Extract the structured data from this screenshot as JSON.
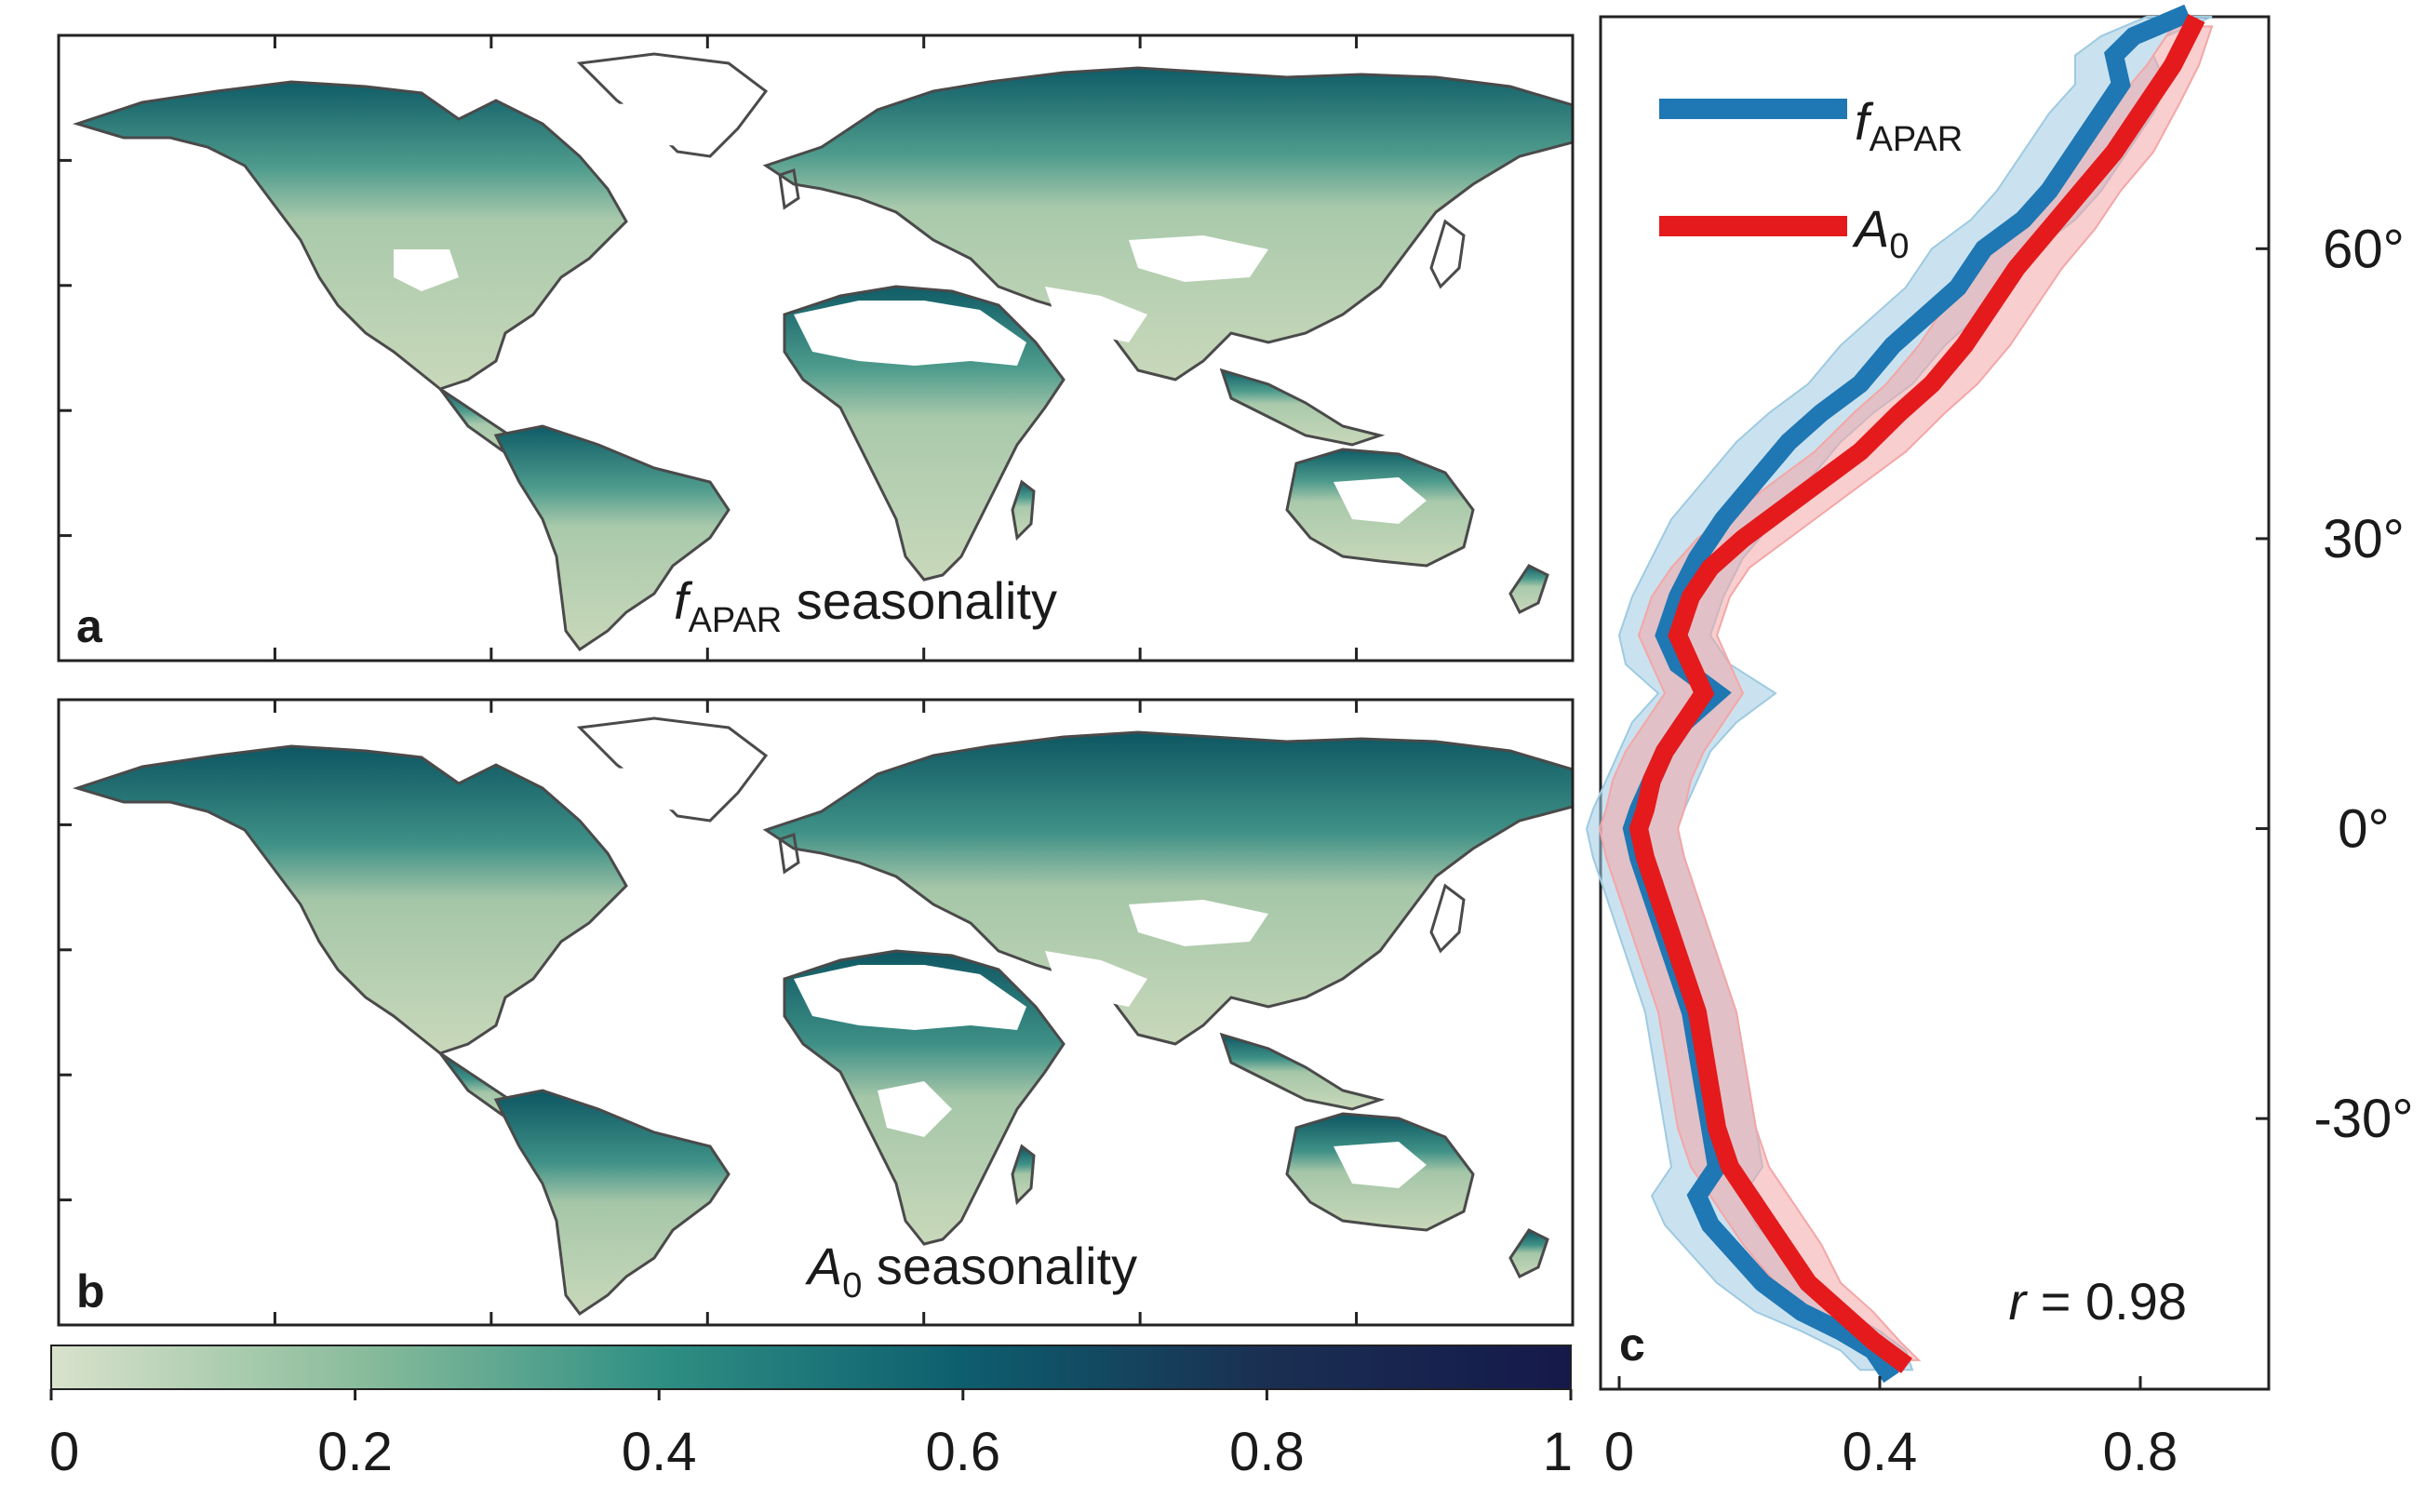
{
  "panels": {
    "a": {
      "letter": "a",
      "label_italic": "f",
      "label_sub": "APAR",
      "label_rest": " seasonality"
    },
    "b": {
      "letter": "b",
      "label_italic": "A",
      "label_sub": "0",
      "label_rest": " seasonality"
    },
    "c": {
      "letter": "c"
    }
  },
  "colorbar": {
    "colors": [
      "#d9e2cc",
      "#8bbd9c",
      "#2f8f83",
      "#0d5e6e",
      "#1a2f52",
      "#15194a"
    ],
    "ticks": [
      "0",
      "0.2",
      "0.4",
      "0.6",
      "0.8",
      "1"
    ],
    "tick_values": [
      0,
      0.2,
      0.4,
      0.6,
      0.8,
      1
    ]
  },
  "map_colors": {
    "land_low": "#c8d6b9",
    "land_mid": "#6fae96",
    "land_high": "#0f5e6a",
    "coast": "#4a4a4a"
  },
  "chart_data": {
    "type": "line",
    "orientation": "latitude-profile",
    "xlim": [
      0,
      1
    ],
    "ylim": [
      -58,
      84
    ],
    "x_ticks": [
      "0",
      "0.4",
      "0.8"
    ],
    "x_tick_values": [
      0,
      0.4,
      0.8
    ],
    "y_ticks": [
      "60°",
      "30°",
      "0°",
      "-30°"
    ],
    "y_tick_values": [
      60,
      30,
      0,
      -30
    ],
    "annotation": {
      "italic": "r",
      "rest": " = 0.98"
    },
    "series": [
      {
        "name_italic": "f",
        "name_sub": "APAR",
        "color": "#1f77b4",
        "band_color": "#9ecae1",
        "points": [
          [
            0.86,
            84
          ],
          [
            0.79,
            82
          ],
          [
            0.76,
            80
          ],
          [
            0.77,
            77
          ],
          [
            0.74,
            74
          ],
          [
            0.7,
            70
          ],
          [
            0.66,
            66
          ],
          [
            0.62,
            63
          ],
          [
            0.56,
            60
          ],
          [
            0.52,
            56
          ],
          [
            0.47,
            53
          ],
          [
            0.42,
            50
          ],
          [
            0.37,
            46
          ],
          [
            0.31,
            43
          ],
          [
            0.26,
            40
          ],
          [
            0.21,
            36
          ],
          [
            0.16,
            32
          ],
          [
            0.12,
            28
          ],
          [
            0.09,
            24
          ],
          [
            0.07,
            20
          ],
          [
            0.09,
            17
          ],
          [
            0.15,
            14
          ],
          [
            0.1,
            11
          ],
          [
            0.07,
            8
          ],
          [
            0.05,
            5
          ],
          [
            0.03,
            2
          ],
          [
            0.02,
            0
          ],
          [
            0.03,
            -3
          ],
          [
            0.05,
            -7
          ],
          [
            0.07,
            -11
          ],
          [
            0.09,
            -15
          ],
          [
            0.11,
            -19
          ],
          [
            0.12,
            -23
          ],
          [
            0.13,
            -27
          ],
          [
            0.14,
            -31
          ],
          [
            0.15,
            -35
          ],
          [
            0.12,
            -38
          ],
          [
            0.14,
            -41
          ],
          [
            0.18,
            -44
          ],
          [
            0.22,
            -47
          ],
          [
            0.28,
            -50
          ],
          [
            0.34,
            -52
          ],
          [
            0.39,
            -54
          ],
          [
            0.41,
            -56
          ]
        ],
        "band": [
          0.05,
          0.05,
          0.06,
          0.07,
          0.08,
          0.08,
          0.08,
          0.08,
          0.08,
          0.08,
          0.08,
          0.08,
          0.08,
          0.08,
          0.08,
          0.08,
          0.08,
          0.07,
          0.07,
          0.07,
          0.08,
          0.09,
          0.08,
          0.07,
          0.07,
          0.07,
          0.07,
          0.07,
          0.07,
          0.07,
          0.07,
          0.07,
          0.07,
          0.07,
          0.07,
          0.07,
          0.07,
          0.07,
          0.07,
          0.07,
          0.07,
          0.06,
          0.05,
          0.04
        ]
      },
      {
        "name_italic": "A",
        "name_sub": "0",
        "color": "#e41a1c",
        "band_color": "#f4a6a6",
        "points": [
          [
            0.88,
            83
          ],
          [
            0.85,
            79
          ],
          [
            0.81,
            75
          ],
          [
            0.76,
            70
          ],
          [
            0.71,
            66
          ],
          [
            0.66,
            62
          ],
          [
            0.61,
            58
          ],
          [
            0.57,
            54
          ],
          [
            0.53,
            50
          ],
          [
            0.48,
            46
          ],
          [
            0.43,
            43
          ],
          [
            0.37,
            39
          ],
          [
            0.31,
            36
          ],
          [
            0.25,
            33
          ],
          [
            0.19,
            30
          ],
          [
            0.14,
            27
          ],
          [
            0.11,
            24
          ],
          [
            0.09,
            20
          ],
          [
            0.11,
            17
          ],
          [
            0.13,
            14
          ],
          [
            0.1,
            11
          ],
          [
            0.07,
            8
          ],
          [
            0.05,
            5
          ],
          [
            0.04,
            2
          ],
          [
            0.03,
            0
          ],
          [
            0.04,
            -3
          ],
          [
            0.06,
            -7
          ],
          [
            0.08,
            -11
          ],
          [
            0.1,
            -15
          ],
          [
            0.12,
            -19
          ],
          [
            0.13,
            -23
          ],
          [
            0.14,
            -27
          ],
          [
            0.15,
            -31
          ],
          [
            0.17,
            -35
          ],
          [
            0.21,
            -39
          ],
          [
            0.25,
            -43
          ],
          [
            0.29,
            -47
          ],
          [
            0.34,
            -50
          ],
          [
            0.39,
            -53
          ],
          [
            0.43,
            -55
          ]
        ],
        "band": [
          0.03,
          0.04,
          0.05,
          0.06,
          0.06,
          0.07,
          0.07,
          0.07,
          0.07,
          0.07,
          0.07,
          0.07,
          0.07,
          0.07,
          0.07,
          0.06,
          0.06,
          0.06,
          0.06,
          0.06,
          0.06,
          0.06,
          0.06,
          0.06,
          0.06,
          0.06,
          0.06,
          0.06,
          0.06,
          0.06,
          0.06,
          0.06,
          0.06,
          0.06,
          0.06,
          0.06,
          0.05,
          0.05,
          0.04,
          0.03
        ]
      }
    ]
  }
}
